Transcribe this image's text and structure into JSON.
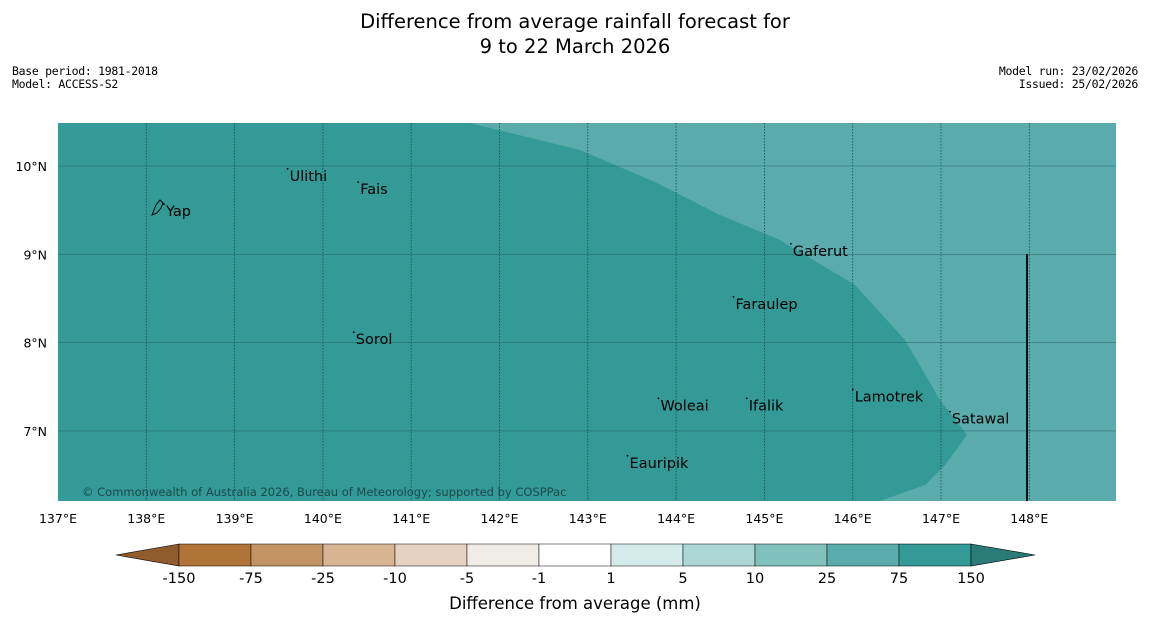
{
  "title": {
    "line1": "Difference from average rainfall forecast for",
    "line2": "9 to 22 March 2026"
  },
  "meta": {
    "base_period": "Base period: 1981-2018",
    "model": "Model: ACCESS-S2",
    "model_run": "Model run: 23/02/2026",
    "issued": "Issued: 25/02/2026"
  },
  "map": {
    "lon_range": [
      137,
      149
    ],
    "lat_range": [
      6.2,
      10.5
    ],
    "lon_ticks": [
      "137°E",
      "138°E",
      "139°E",
      "140°E",
      "141°E",
      "142°E",
      "143°E",
      "144°E",
      "145°E",
      "146°E",
      "147°E",
      "148°E"
    ],
    "lat_ticks": [
      "7°N",
      "8°N",
      "9°N",
      "10°N"
    ],
    "copyright": "© Commonwealth of Australia 2026, Bureau of Meteorology; supported by COSPPac",
    "places": [
      {
        "name": "Yap",
        "lon": 138.2,
        "lat": 9.5
      },
      {
        "name": "Ulithi",
        "lon": 139.6,
        "lat": 9.9
      },
      {
        "name": "Fais",
        "lon": 140.4,
        "lat": 9.75
      },
      {
        "name": "Gaferut",
        "lon": 145.3,
        "lat": 9.05
      },
      {
        "name": "Faraulep",
        "lon": 144.65,
        "lat": 8.45
      },
      {
        "name": "Sorol",
        "lon": 140.35,
        "lat": 8.05
      },
      {
        "name": "Woleai",
        "lon": 143.8,
        "lat": 7.3
      },
      {
        "name": "Ifalik",
        "lon": 144.8,
        "lat": 7.3
      },
      {
        "name": "Lamotrek",
        "lon": 146.0,
        "lat": 7.4
      },
      {
        "name": "Satawal",
        "lon": 147.1,
        "lat": 7.15
      },
      {
        "name": "Eauripik",
        "lon": 143.45,
        "lat": 6.65
      }
    ],
    "colors": {
      "category_75_150": "#339a98",
      "category_25_75": "#5aabab",
      "grid": "#1a4a48",
      "boundary": "#000000"
    }
  },
  "colorbar": {
    "title": "Difference from average (mm)",
    "labels": [
      "-150",
      "-75",
      "-25",
      "-10",
      "-5",
      "-1",
      "1",
      "5",
      "10",
      "25",
      "75",
      "150"
    ],
    "colors": [
      "#b07338",
      "#c39465",
      "#d7b492",
      "#e6d2c1",
      "#f0ece6",
      "#ffffff",
      "#d5ebe9",
      "#acd7d5",
      "#80c1be",
      "#5aabab",
      "#339a98"
    ],
    "under_color": "#8f5c2b",
    "over_color": "#2b7b78"
  }
}
